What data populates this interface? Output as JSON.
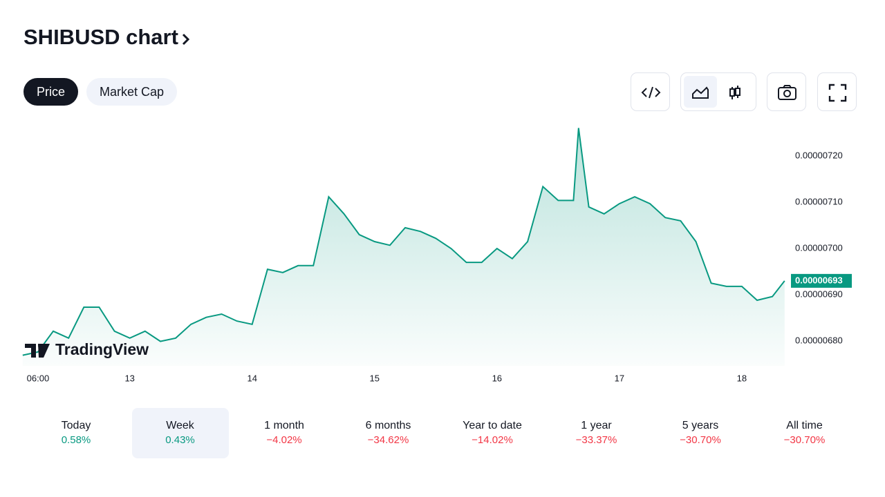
{
  "header": {
    "title": "SHIBUSD chart"
  },
  "tabs": [
    {
      "label": "Price",
      "active": true
    },
    {
      "label": "Market Cap",
      "active": false
    }
  ],
  "chart_data": {
    "type": "area",
    "watermark": "TradingView",
    "x": [
      -3,
      0,
      3,
      6,
      9,
      12,
      15,
      18,
      21,
      24,
      27,
      30,
      33,
      36,
      39,
      42,
      45,
      48,
      51,
      54,
      57,
      60,
      63,
      66,
      69,
      72,
      75,
      78,
      81,
      84,
      87,
      90,
      93,
      96,
      99,
      102,
      105,
      106,
      108,
      111,
      114,
      117,
      120,
      123,
      126,
      129,
      132,
      135,
      138,
      141,
      144,
      146.4
    ],
    "series": [
      {
        "color": "#089981",
        "values": [
          6.769e-06,
          6.776e-06,
          6.821e-06,
          6.806e-06,
          6.873e-06,
          6.873e-06,
          6.821e-06,
          6.806e-06,
          6.821e-06,
          6.799e-06,
          6.806e-06,
          6.836e-06,
          6.851e-06,
          6.858e-06,
          6.843e-06,
          6.836e-06,
          6.955e-06,
          6.948e-06,
          6.963e-06,
          6.963e-06,
          7.112e-06,
          7.075e-06,
          7.03e-06,
          7.015e-06,
          7.007e-06,
          7.045e-06,
          7.037e-06,
          7.022e-06,
          7e-06,
          6.97e-06,
          6.97e-06,
          7e-06,
          6.978e-06,
          7.015e-06,
          7.134e-06,
          7.104e-06,
          7.104e-06,
          7.261e-06,
          7.09e-06,
          7.075e-06,
          7.097e-06,
          7.112e-06,
          7.097e-06,
          7.067e-06,
          7.06e-06,
          7.015e-06,
          6.925e-06,
          6.918e-06,
          6.918e-06,
          6.888e-06,
          6.896e-06,
          6.93e-06
        ]
      }
    ],
    "last_label": "0.00000693",
    "xlim": [
      -2.7,
      147.1
    ],
    "ylim": [
      6.746e-06,
      7.269e-06
    ],
    "xticks": [
      {
        "value": 0,
        "label": "06:00"
      },
      {
        "value": 18,
        "label": "13"
      },
      {
        "value": 42,
        "label": "14"
      },
      {
        "value": 66,
        "label": "15"
      },
      {
        "value": 90,
        "label": "16"
      },
      {
        "value": 114,
        "label": "17"
      },
      {
        "value": 138,
        "label": "18"
      }
    ],
    "yticks": [
      {
        "value": 6.8e-06,
        "label": "0.00000680"
      },
      {
        "value": 6.9e-06,
        "label": "0.00000690"
      },
      {
        "value": 7e-06,
        "label": "0.00000700"
      },
      {
        "value": 7.1e-06,
        "label": "0.00000710"
      },
      {
        "value": 7.2e-06,
        "label": "0.00000720"
      }
    ]
  },
  "periods": [
    {
      "label": "Today",
      "change": "0.58%",
      "trend": "up"
    },
    {
      "label": "Week",
      "change": "0.43%",
      "trend": "up",
      "active": true
    },
    {
      "label": "1 month",
      "change": "−4.02%",
      "trend": "down"
    },
    {
      "label": "6 months",
      "change": "−34.62%",
      "trend": "down"
    },
    {
      "label": "Year to date",
      "change": "−14.02%",
      "trend": "down"
    },
    {
      "label": "1 year",
      "change": "−33.37%",
      "trend": "down"
    },
    {
      "label": "5 years",
      "change": "−30.70%",
      "trend": "down"
    },
    {
      "label": "All time",
      "change": "−30.70%",
      "trend": "down"
    }
  ]
}
